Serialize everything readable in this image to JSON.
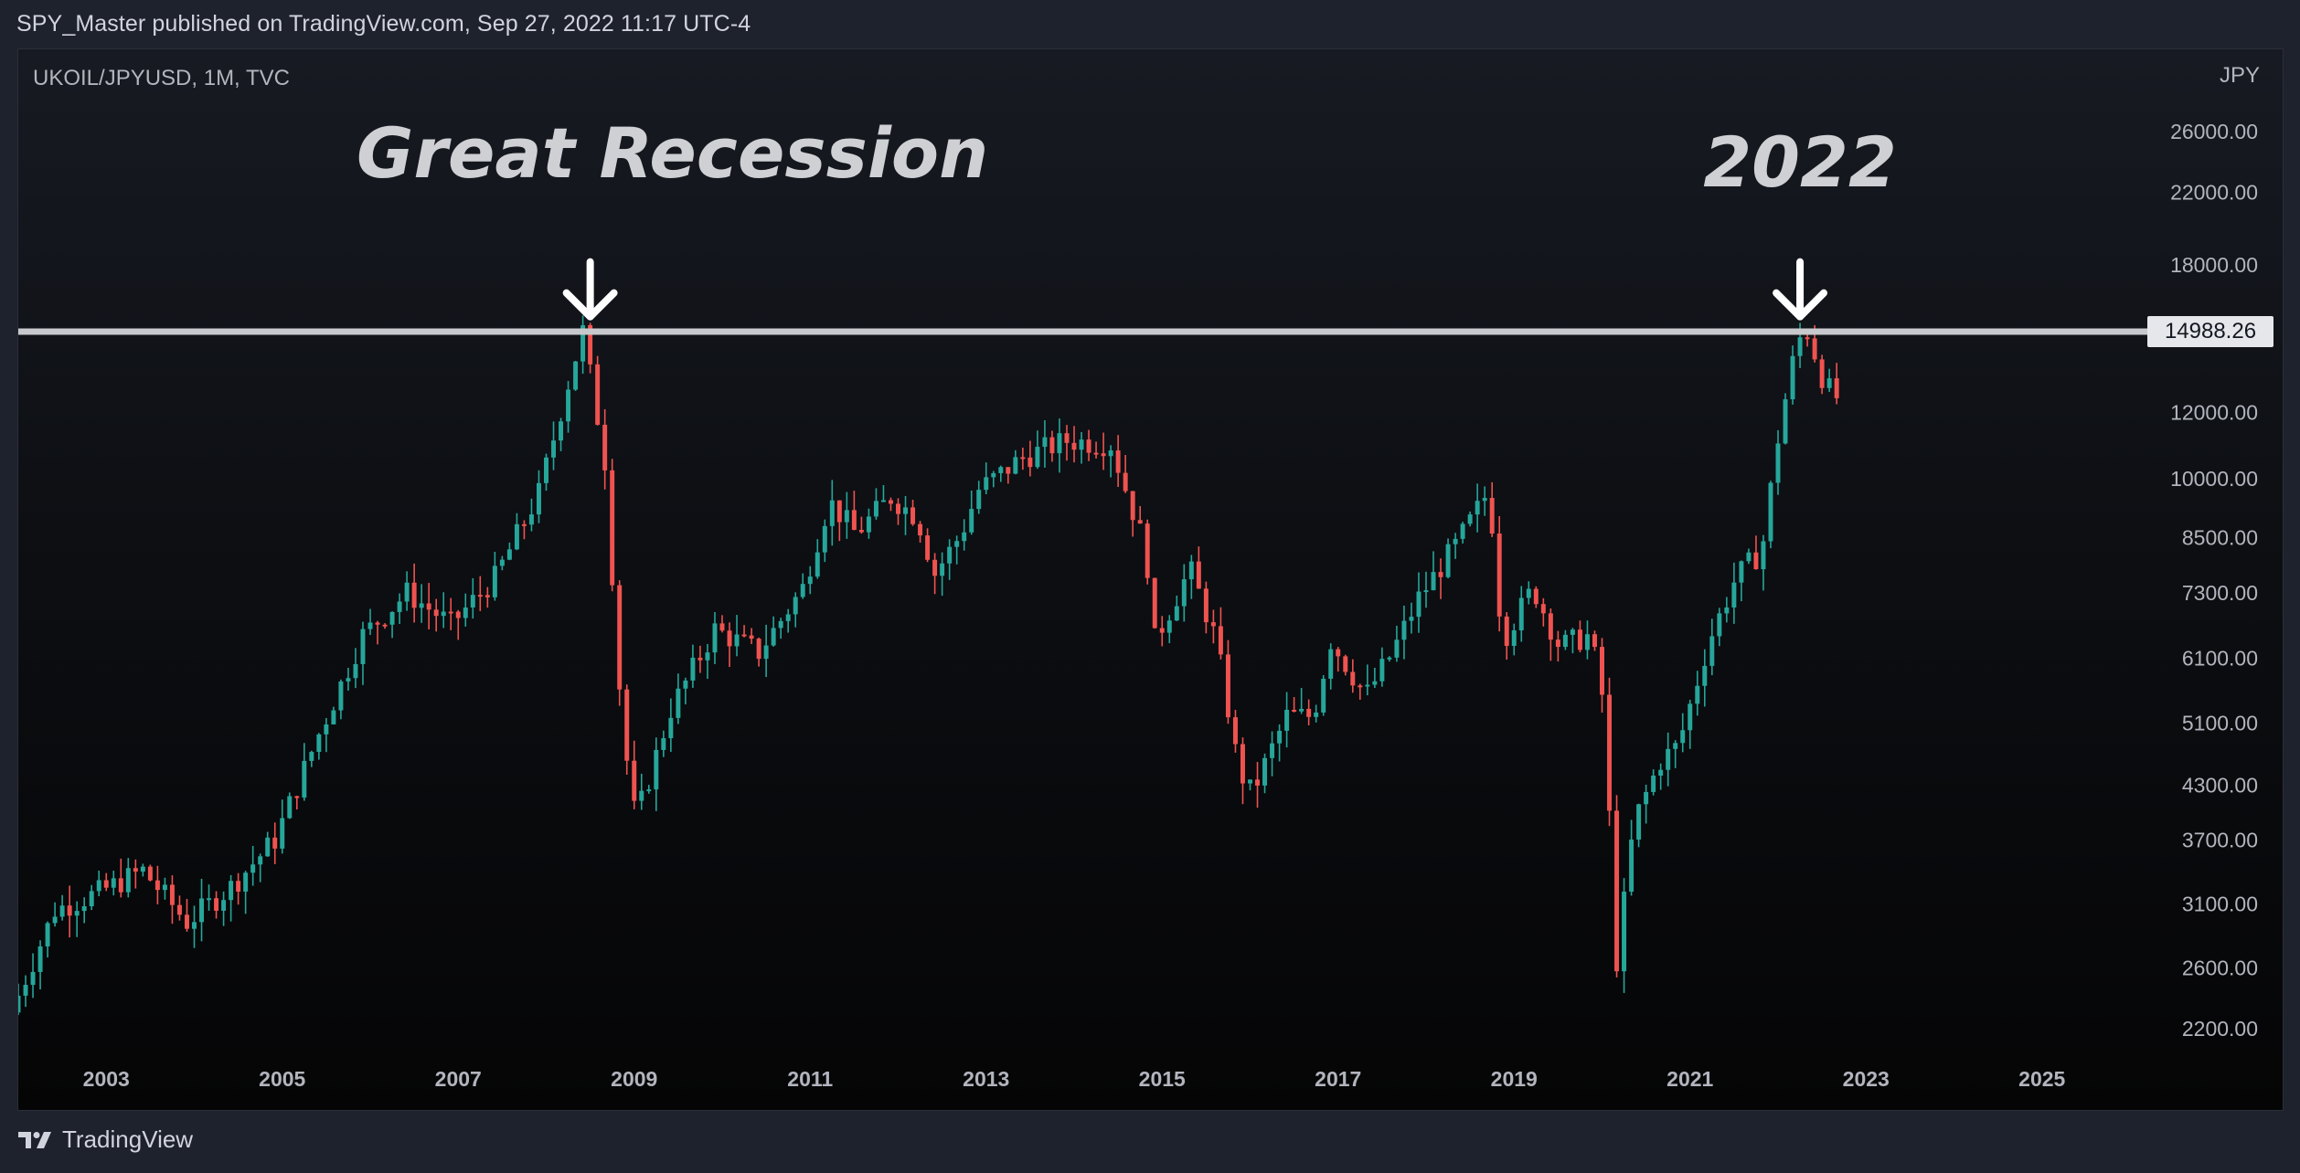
{
  "header": {
    "published_text": "SPY_Master published on TradingView.com, Sep 27, 2022 11:17 UTC-4"
  },
  "chart": {
    "symbol_label": "UKOIL/JPYUSD, 1M, TVC",
    "currency_label": "JPY",
    "price_tag": "14988.26"
  },
  "footer": {
    "brand": "TradingView"
  },
  "colors": {
    "up": "#26a69a",
    "down": "#ef5350",
    "level_line": "#c8c9cc",
    "background": "#1e222d"
  },
  "chart_data": {
    "type": "candlestick",
    "scale": "log",
    "interval": "1M",
    "y_unit": "JPY",
    "y_ticks": [
      26000,
      22000,
      18000,
      12000,
      10000,
      8500,
      7300,
      6100,
      5100,
      4300,
      3700,
      3100,
      2600,
      2200
    ],
    "y_tick_labels": [
      "26000.00",
      "22000.00",
      "18000.00",
      "12000.00",
      "10000.00",
      "8500.00",
      "7300.00",
      "6100.00",
      "5100.00",
      "4300.00",
      "3700.00",
      "3100.00",
      "2600.00",
      "2200.00"
    ],
    "x_ticks": [
      "2003",
      "2005",
      "2007",
      "2009",
      "2011",
      "2013",
      "2015",
      "2017",
      "2019",
      "2021",
      "2023",
      "2025"
    ],
    "x_range": [
      2002.0,
      2026.0
    ],
    "horizontal_level": 14988.26,
    "annotations": [
      {
        "text": "Great Recession",
        "date": 2008.5,
        "price": 15500
      },
      {
        "text": "2022",
        "date": 2022.25,
        "price": 15500
      }
    ],
    "anchors": [
      [
        2002.0,
        2300
      ],
      [
        2002.5,
        3050
      ],
      [
        2003.0,
        3200
      ],
      [
        2003.5,
        3400
      ],
      [
        2004.0,
        2950
      ],
      [
        2004.5,
        3250
      ],
      [
        2005.0,
        3700
      ],
      [
        2005.5,
        4950
      ],
      [
        2006.0,
        6500
      ],
      [
        2006.5,
        7300
      ],
      [
        2007.0,
        6700
      ],
      [
        2007.5,
        7600
      ],
      [
        2008.0,
        9600
      ],
      [
        2008.35,
        13200
      ],
      [
        2008.5,
        15000
      ],
      [
        2008.75,
        10500
      ],
      [
        2008.95,
        5000
      ],
      [
        2009.1,
        3900
      ],
      [
        2009.5,
        5300
      ],
      [
        2010.0,
        6600
      ],
      [
        2010.5,
        6200
      ],
      [
        2011.0,
        7400
      ],
      [
        2011.3,
        9400
      ],
      [
        2011.6,
        8600
      ],
      [
        2012.0,
        9500
      ],
      [
        2012.3,
        9000
      ],
      [
        2012.5,
        7700
      ],
      [
        2012.8,
        8600
      ],
      [
        2013.0,
        9700
      ],
      [
        2013.5,
        10600
      ],
      [
        2014.0,
        11100
      ],
      [
        2014.5,
        11000
      ],
      [
        2014.9,
        8200
      ],
      [
        2015.0,
        6400
      ],
      [
        2015.4,
        7800
      ],
      [
        2015.7,
        6400
      ],
      [
        2015.95,
        4500
      ],
      [
        2016.1,
        4200
      ],
      [
        2016.5,
        5200
      ],
      [
        2016.8,
        5200
      ],
      [
        2017.0,
        6400
      ],
      [
        2017.4,
        5500
      ],
      [
        2017.7,
        6200
      ],
      [
        2018.0,
        7200
      ],
      [
        2018.45,
        8400
      ],
      [
        2018.8,
        9700
      ],
      [
        2018.95,
        6400
      ],
      [
        2019.3,
        7400
      ],
      [
        2019.6,
        6300
      ],
      [
        2019.95,
        6500
      ],
      [
        2020.1,
        5400
      ],
      [
        2020.25,
        2650
      ],
      [
        2020.45,
        3900
      ],
      [
        2020.75,
        4600
      ],
      [
        2020.95,
        4800
      ],
      [
        2021.3,
        6400
      ],
      [
        2021.6,
        7600
      ],
      [
        2021.9,
        8200
      ],
      [
        2022.1,
        11500
      ],
      [
        2022.3,
        14600
      ],
      [
        2022.42,
        15000
      ],
      [
        2022.6,
        13100
      ],
      [
        2022.72,
        12500
      ]
    ]
  }
}
